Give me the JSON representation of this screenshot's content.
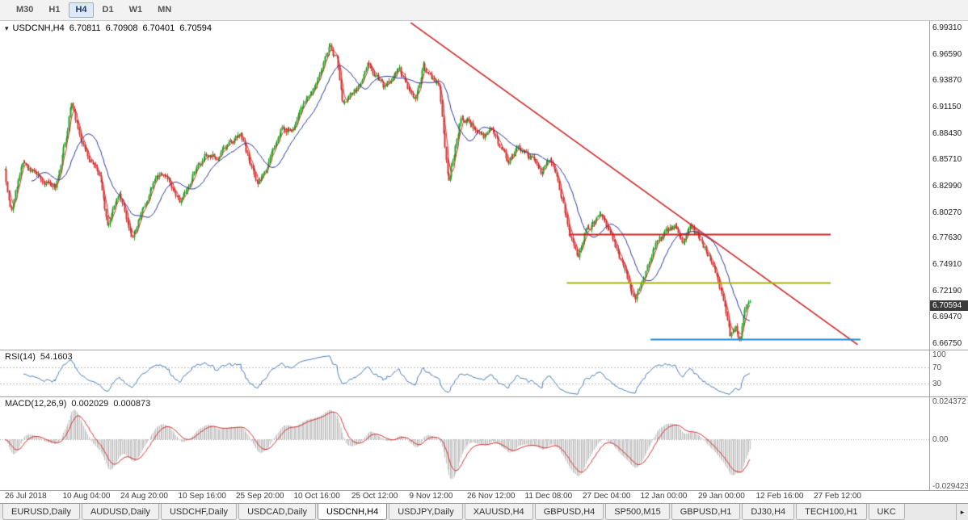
{
  "toolbar": {
    "timeframes": [
      {
        "label": "M30",
        "active": false
      },
      {
        "label": "H1",
        "active": false
      },
      {
        "label": "H4",
        "active": true
      },
      {
        "label": "D1",
        "active": false
      },
      {
        "label": "W1",
        "active": false
      },
      {
        "label": "MN",
        "active": false
      }
    ]
  },
  "chart": {
    "symbol": "USDCNH,H4",
    "open": "6.70811",
    "high": "6.70908",
    "low": "6.70401",
    "close": "6.70594",
    "current_price": "6.70594",
    "price_scale": [
      "6.99310",
      "6.96590",
      "6.93870",
      "6.91150",
      "6.88430",
      "6.85710",
      "6.82990",
      "6.80270",
      "6.77630",
      "6.74910",
      "6.72190",
      "6.69470",
      "6.66750"
    ]
  },
  "rsi_panel": {
    "name": "RSI(14)",
    "value": "54.1603",
    "scale": [
      "100",
      "70",
      "30"
    ]
  },
  "macd_panel": {
    "name": "MACD(12,26,9)",
    "value_main": "0.002029",
    "value_signal": "0.000873",
    "scale": [
      "0.024372",
      "0.00",
      "-0.029423"
    ]
  },
  "time_axis": [
    "26 Jul 2018",
    "10 Aug 04:00",
    "24 Aug 20:00",
    "10 Sep 16:00",
    "25 Sep 20:00",
    "10 Oct 16:00",
    "25 Oct 12:00",
    "9 Nov 12:00",
    "26 Nov 12:00",
    "11 Dec 08:00",
    "27 Dec 04:00",
    "12 Jan 00:00",
    "29 Jan 00:00",
    "12 Feb 16:00",
    "27 Feb 12:00"
  ],
  "tab_bar": {
    "more_icon": "▸",
    "tabs": [
      {
        "label": "EURUSD,Daily",
        "active": false
      },
      {
        "label": "AUDUSD,Daily",
        "active": false
      },
      {
        "label": "USDCHF,Daily",
        "active": false
      },
      {
        "label": "USDCAD,Daily",
        "active": false
      },
      {
        "label": "USDCNH,H4",
        "active": true
      },
      {
        "label": "USDJPY,Daily",
        "active": false
      },
      {
        "label": "XAUUSD,H4",
        "active": false
      },
      {
        "label": "GBPUSD,H4",
        "active": false
      },
      {
        "label": "SP500,M15",
        "active": false
      },
      {
        "label": "GBPUSD,H1",
        "active": false
      },
      {
        "label": "DJ30,H4",
        "active": false
      },
      {
        "label": "TECH100,H1",
        "active": false
      },
      {
        "label": "UKC",
        "active": false
      }
    ]
  },
  "colors": {
    "up": "#1fa31f",
    "down": "#d43030",
    "ma_fast": "#d43030",
    "ma_slow": "#27339b",
    "trendline": "#cc2222",
    "hline_red": "#cc2222",
    "hline_olive": "#a9b400",
    "hline_blue": "#1e88cf",
    "rsi_line": "#4a7ebb",
    "rsi_level": "#bbbbbb",
    "macd_hist": "#c4c4c4",
    "macd_signal": "#d43030",
    "badge_bg": "#3a3a3a"
  },
  "chart_data": {
    "type": "candlestick",
    "title": "USDCNH H4 with RSI(14) and MACD(12,26,9)",
    "ylim": [
      6.6609,
      6.9997
    ],
    "bars": 560,
    "x_start": 0.005,
    "x_end": 0.807,
    "seed": 1234602,
    "noise": 0.006,
    "wick": 0.0035,
    "price_path": [
      [
        0.0,
        6.845
      ],
      [
        0.008,
        6.801
      ],
      [
        0.024,
        6.858
      ],
      [
        0.045,
        6.838
      ],
      [
        0.068,
        6.83
      ],
      [
        0.082,
        6.878
      ],
      [
        0.089,
        6.917
      ],
      [
        0.1,
        6.882
      ],
      [
        0.111,
        6.858
      ],
      [
        0.127,
        6.842
      ],
      [
        0.138,
        6.79
      ],
      [
        0.154,
        6.82
      ],
      [
        0.171,
        6.776
      ],
      [
        0.187,
        6.81
      ],
      [
        0.203,
        6.842
      ],
      [
        0.22,
        6.836
      ],
      [
        0.236,
        6.812
      ],
      [
        0.252,
        6.84
      ],
      [
        0.268,
        6.862
      ],
      [
        0.285,
        6.86
      ],
      [
        0.301,
        6.872
      ],
      [
        0.317,
        6.882
      ],
      [
        0.328,
        6.856
      ],
      [
        0.339,
        6.832
      ],
      [
        0.35,
        6.846
      ],
      [
        0.361,
        6.87
      ],
      [
        0.372,
        6.892
      ],
      [
        0.383,
        6.886
      ],
      [
        0.393,
        6.902
      ],
      [
        0.404,
        6.92
      ],
      [
        0.415,
        6.932
      ],
      [
        0.426,
        6.956
      ],
      [
        0.435,
        6.974
      ],
      [
        0.446,
        6.958
      ],
      [
        0.453,
        6.912
      ],
      [
        0.464,
        6.926
      ],
      [
        0.475,
        6.932
      ],
      [
        0.486,
        6.956
      ],
      [
        0.497,
        6.944
      ],
      [
        0.508,
        6.93
      ],
      [
        0.518,
        6.94
      ],
      [
        0.529,
        6.95
      ],
      [
        0.54,
        6.93
      ],
      [
        0.551,
        6.92
      ],
      [
        0.562,
        6.954
      ],
      [
        0.573,
        6.94
      ],
      [
        0.584,
        6.928
      ],
      [
        0.589,
        6.876
      ],
      [
        0.595,
        6.832
      ],
      [
        0.611,
        6.896
      ],
      [
        0.622,
        6.9
      ],
      [
        0.632,
        6.886
      ],
      [
        0.643,
        6.88
      ],
      [
        0.654,
        6.89
      ],
      [
        0.665,
        6.868
      ],
      [
        0.676,
        6.854
      ],
      [
        0.687,
        6.87
      ],
      [
        0.698,
        6.864
      ],
      [
        0.709,
        6.858
      ],
      [
        0.72,
        6.844
      ],
      [
        0.73,
        6.86
      ],
      [
        0.741,
        6.84
      ],
      [
        0.752,
        6.8
      ],
      [
        0.763,
        6.768
      ],
      [
        0.768,
        6.754
      ],
      [
        0.779,
        6.782
      ],
      [
        0.79,
        6.792
      ],
      [
        0.801,
        6.8
      ],
      [
        0.812,
        6.784
      ],
      [
        0.823,
        6.758
      ],
      [
        0.834,
        6.738
      ],
      [
        0.845,
        6.712
      ],
      [
        0.856,
        6.732
      ],
      [
        0.866,
        6.756
      ],
      [
        0.877,
        6.776
      ],
      [
        0.888,
        6.782
      ],
      [
        0.899,
        6.786
      ],
      [
        0.91,
        6.774
      ],
      [
        0.921,
        6.788
      ],
      [
        0.928,
        6.778
      ],
      [
        0.94,
        6.764
      ],
      [
        0.951,
        6.744
      ],
      [
        0.962,
        6.718
      ],
      [
        0.968,
        6.698
      ],
      [
        0.973,
        6.674
      ],
      [
        0.981,
        6.684
      ],
      [
        0.986,
        6.672
      ],
      [
        0.992,
        6.698
      ],
      [
        1.0,
        6.706
      ]
    ],
    "trendline": {
      "x1": 0.442,
      "price1": 6.998,
      "x2": 0.923,
      "price2": 6.666
    },
    "hlines": [
      {
        "price": 6.78,
        "x1": 0.612,
        "x2": 0.894,
        "color_key": "hline_red"
      },
      {
        "price": 6.73,
        "x1": 0.61,
        "x2": 0.894,
        "color_key": "hline_olive"
      },
      {
        "price": 6.6715,
        "x1": 0.7,
        "x2": 0.926,
        "color_key": "hline_blue"
      }
    ],
    "ma_fast_period": 5,
    "ma_slow_period": 21,
    "rsi": {
      "period": 14,
      "ylim": [
        0,
        110
      ],
      "levels": [
        70,
        30
      ]
    },
    "macd": {
      "fast": 12,
      "slow": 26,
      "signal": 9,
      "ylim": [
        -0.0322,
        0.0268
      ]
    }
  }
}
